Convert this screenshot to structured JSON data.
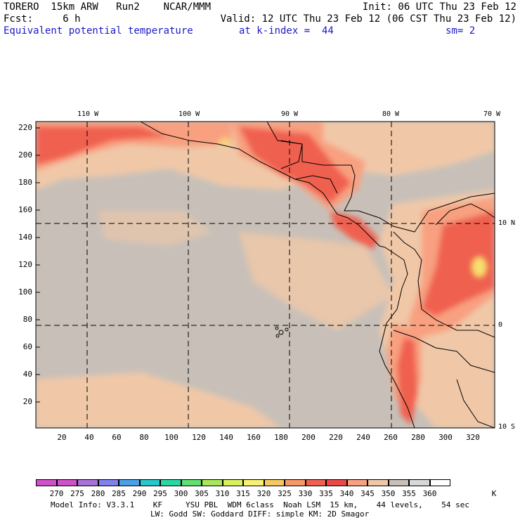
{
  "header": {
    "line1_left": "TORERO  15km ARW   Run2    NCAR/MMM",
    "line1_right": "Init: 06 UTC Thu 23 Feb 12",
    "line2_left": "Fcst:     6 h",
    "line2_right": "Valid: 12 UTC Thu 23 Feb 12 (06 CST Thu 23 Feb 12)",
    "field_name": "Equivalent potential temperature",
    "level": "at k-index =  44",
    "smoothing": "sm= 2"
  },
  "map": {
    "longitude_labels": [
      "110 W",
      "100 W",
      "90 W",
      "80 W",
      "70 W"
    ],
    "latitude_labels": [
      "10 N",
      "0",
      "10 S"
    ],
    "y_ticks": [
      "220",
      "200",
      "180",
      "160",
      "140",
      "120",
      "100",
      "80",
      "60",
      "40",
      "20"
    ],
    "x_ticks": [
      "20",
      "40",
      "60",
      "80",
      "100",
      "120",
      "140",
      "160",
      "180",
      "200",
      "220",
      "240",
      "260",
      "280",
      "300",
      "320"
    ],
    "colors": {
      "background": "#c8c0b8",
      "warm_light": "#f0c8a8",
      "warm_mid": "#f8a080",
      "warm_high": "#f06050",
      "hot": "#f8e070"
    }
  },
  "colorbar": {
    "labels": [
      "270",
      "275",
      "280",
      "285",
      "290",
      "295",
      "300",
      "305",
      "310",
      "315",
      "320",
      "325",
      "330",
      "335",
      "340",
      "345",
      "350",
      "355",
      "360"
    ],
    "unit": "K",
    "colors": [
      "#d050c8",
      "#a870d8",
      "#8080f0",
      "#4aa0e8",
      "#28c8c8",
      "#28d8a0",
      "#60e070",
      "#a8e858",
      "#d8f060",
      "#f8f070",
      "#f8c860",
      "#f89868",
      "#f06050",
      "#e84848",
      "#f8a080",
      "#f0c8a8",
      "#c8c0b8",
      "#d8d8d8",
      "#ffffff"
    ]
  },
  "footer": {
    "line1": "Model Info: V3.3.1    KF     YSU PBL  WDM 6class  Noah LSM  15 km,    44 levels,    54 sec",
    "line2": "LW: Godd SW: Goddard DIFF: simple KM: 2D Smagor"
  }
}
